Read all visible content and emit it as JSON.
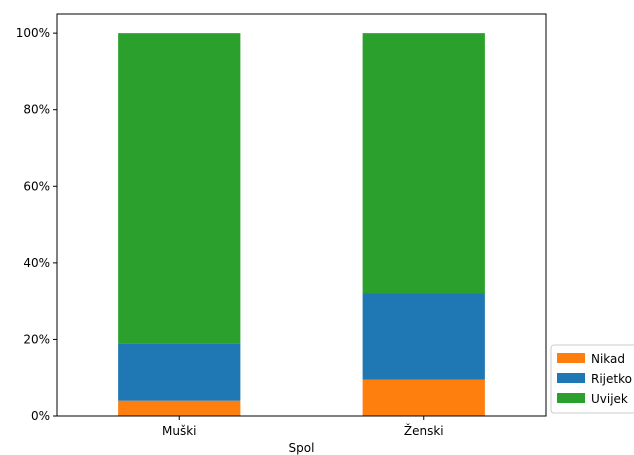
{
  "chart_data": {
    "type": "bar",
    "stacked": true,
    "categories": [
      "Muški",
      "Ženski"
    ],
    "series": [
      {
        "name": "Nikad",
        "color": "#ff7f0e",
        "values": [
          4,
          9.5
        ]
      },
      {
        "name": "Rijetko",
        "color": "#1f77b4",
        "values": [
          15,
          22.5
        ]
      },
      {
        "name": "Uvijek",
        "color": "#2ca02c",
        "values": [
          81,
          68
        ]
      }
    ],
    "xlabel": "Spol",
    "ylabel": "",
    "ylim": [
      0,
      105
    ],
    "yticks": [
      0,
      20,
      40,
      60,
      80,
      100
    ],
    "ytick_labels": [
      "0%",
      "20%",
      "40%",
      "60%",
      "80%",
      "100%"
    ],
    "legend_position": "lower-right, outside plot (clipped)",
    "grid": false
  }
}
